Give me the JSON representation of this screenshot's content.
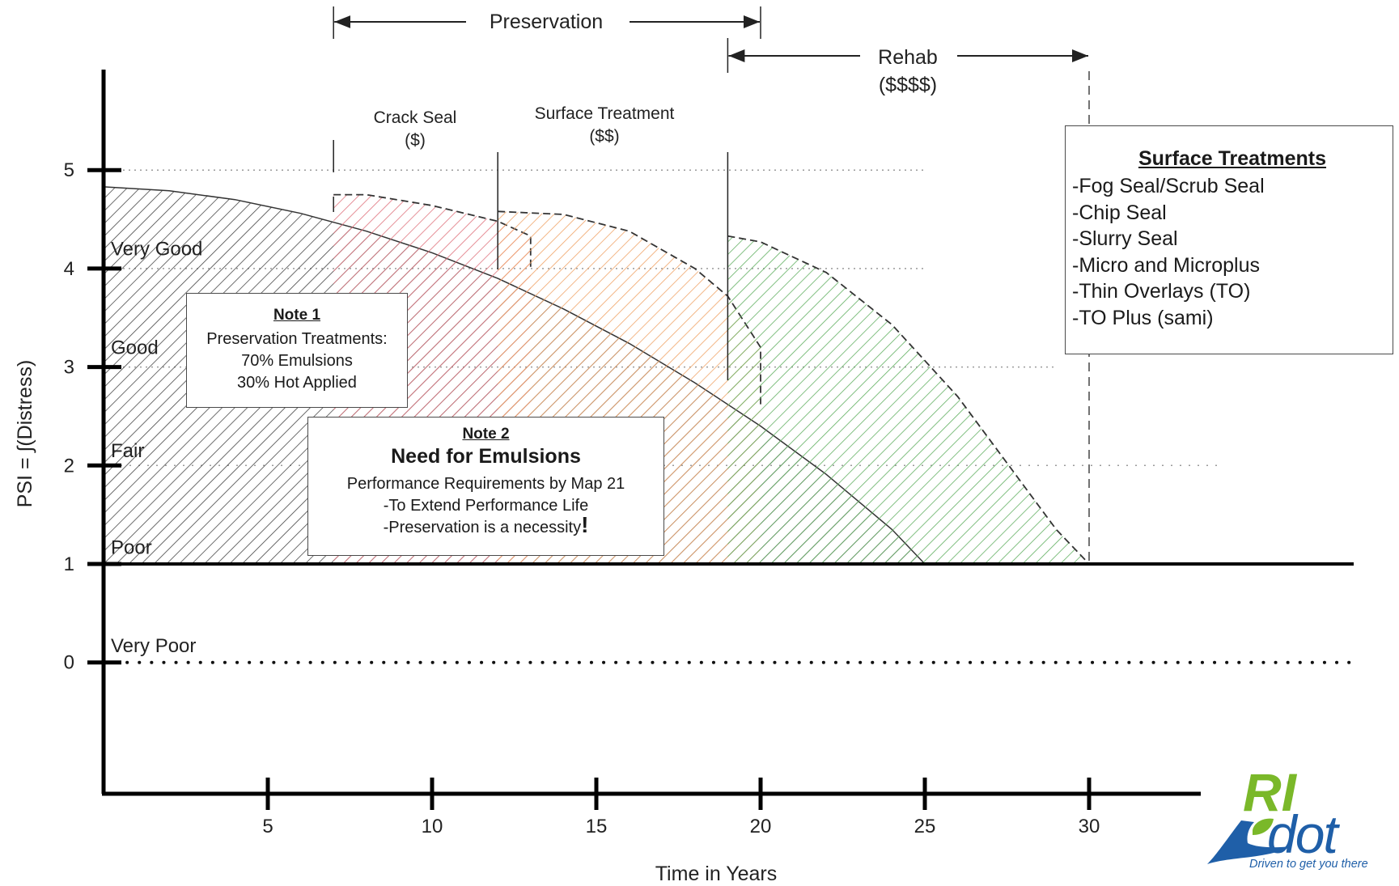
{
  "chart_data": {
    "type": "area",
    "xlabel": "Time in Years",
    "ylabel": "PSI = ∫(Distress)",
    "x_ticks": [
      5,
      10,
      15,
      20,
      25,
      30
    ],
    "y_ticks": [
      0,
      1,
      2,
      3,
      4,
      5
    ],
    "xlim": [
      0,
      38
    ],
    "ylim": [
      -1.35,
      5.6
    ],
    "condition_labels": [
      {
        "text": "Very Good",
        "y": 4.2
      },
      {
        "text": "Good",
        "y": 3.2
      },
      {
        "text": "Fair",
        "y": 2.15
      },
      {
        "text": "Poor",
        "y": 1.17
      },
      {
        "text": "Very Poor",
        "y": 0.17
      }
    ],
    "gridlines": [
      {
        "y": 5,
        "x_end": 25
      },
      {
        "y": 4,
        "x_end": 25
      },
      {
        "y": 3,
        "x_end": 29
      },
      {
        "y": 2,
        "x_end": 34
      }
    ],
    "series": [
      {
        "color": "#3c3c3c",
        "fill": "hatch",
        "x": [
          0,
          2,
          4,
          6,
          8,
          10,
          12,
          14,
          16,
          18,
          20,
          22,
          24,
          25
        ],
        "y": [
          4.83,
          4.79,
          4.7,
          4.56,
          4.38,
          4.16,
          3.9,
          3.59,
          3.24,
          2.84,
          2.4,
          1.91,
          1.35,
          1.0
        ]
      },
      {
        "color": "#e0747e",
        "fill": "hatch",
        "x": [
          7,
          8,
          10,
          12,
          13,
          13
        ],
        "y": [
          4.75,
          4.75,
          4.64,
          4.48,
          4.33,
          4.0
        ]
      },
      {
        "color": "#f0a468",
        "fill": "hatch",
        "x": [
          12,
          14,
          16,
          18,
          19,
          20,
          20
        ],
        "y": [
          4.58,
          4.55,
          4.38,
          4.0,
          3.72,
          3.2,
          2.6
        ]
      },
      {
        "color": "#62b062",
        "fill": "hatch",
        "x": [
          19,
          20,
          22,
          24,
          26,
          28,
          29,
          30
        ],
        "y": [
          4.33,
          4.27,
          3.96,
          3.43,
          2.7,
          1.8,
          1.35,
          1.0
        ]
      }
    ],
    "annotations": {
      "preservation": {
        "label": "Preservation",
        "x_start": 7,
        "x_end": 20
      },
      "rehab": {
        "label": "Rehab",
        "cost": "($$$$)",
        "x_start": 19,
        "x_end": 30
      },
      "crack_seal": {
        "label": "Crack Seal",
        "cost": "($)"
      },
      "surface_treatment": {
        "label": "Surface Treatment",
        "cost": "($$)"
      },
      "markers_x": [
        7,
        12,
        19,
        30
      ]
    }
  },
  "note1": {
    "title": "Note 1",
    "lines": [
      "Preservation Treatments:",
      "70% Emulsions",
      "30% Hot Applied"
    ]
  },
  "note2": {
    "title": "Note 2",
    "heading": "Need for Emulsions",
    "lines": [
      "Performance Requirements by Map 21",
      "-To Extend Performance Life",
      "-Preservation is a necessity"
    ],
    "emphasis": "!"
  },
  "surface_treatments": {
    "title": "Surface Treatments",
    "items": [
      "-Fog Seal/Scrub Seal",
      "-Chip Seal",
      "-Slurry Seal",
      "-Micro and Microplus",
      "-Thin Overlays (TO)",
      "-TO Plus (sami)"
    ]
  },
  "logo": {
    "text_top": "RI",
    "text_bottom": "dot",
    "tagline": "Driven to get you there",
    "colors": {
      "green": "#7ab829",
      "blue": "#1f5fa8"
    }
  }
}
